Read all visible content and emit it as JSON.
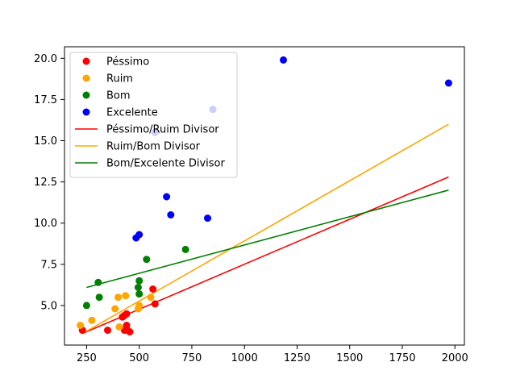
{
  "chart_data": {
    "type": "scatter",
    "title": "",
    "xlabel": "",
    "ylabel": "",
    "xlim": [
      145,
      2045
    ],
    "ylim": [
      2.6,
      20.7
    ],
    "xticks": [
      250,
      500,
      750,
      1000,
      1250,
      1500,
      1750,
      2000
    ],
    "yticks": [
      5.0,
      7.5,
      10.0,
      12.5,
      15.0,
      17.5,
      20.0
    ],
    "xtick_labels": [
      "250",
      "500",
      "750",
      "1000",
      "1250",
      "1500",
      "1750",
      "2000"
    ],
    "ytick_labels": [
      "5.0",
      "7.5",
      "10.0",
      "12.5",
      "15.0",
      "17.5",
      "20.0"
    ],
    "grid": false,
    "legend_position": "top-left",
    "series": [
      {
        "name": "Péssimo",
        "kind": "scatter",
        "color": "#ff0000",
        "points": [
          [
            230,
            3.5
          ],
          [
            350,
            3.5
          ],
          [
            420,
            4.3
          ],
          [
            430,
            4.4
          ],
          [
            440,
            4.5
          ],
          [
            440,
            3.8
          ],
          [
            430,
            3.5
          ],
          [
            445,
            3.5
          ],
          [
            455,
            3.4
          ],
          [
            565,
            6.0
          ],
          [
            575,
            5.1
          ]
        ]
      },
      {
        "name": "Ruim",
        "kind": "scatter",
        "color": "#ffa500",
        "points": [
          [
            220,
            3.8
          ],
          [
            275,
            4.1
          ],
          [
            385,
            4.8
          ],
          [
            400,
            5.5
          ],
          [
            405,
            3.7
          ],
          [
            435,
            5.6
          ],
          [
            495,
            4.8
          ],
          [
            500,
            5.0
          ],
          [
            555,
            5.5
          ]
        ]
      },
      {
        "name": "Bom",
        "kind": "scatter",
        "color": "#008000",
        "points": [
          [
            250,
            5.0
          ],
          [
            305,
            6.4
          ],
          [
            310,
            5.5
          ],
          [
            495,
            6.1
          ],
          [
            500,
            5.7
          ],
          [
            500,
            6.5
          ],
          [
            535,
            7.8
          ],
          [
            720,
            8.4
          ]
        ]
      },
      {
        "name": "Excelente",
        "kind": "scatter",
        "color": "#0000ff",
        "points": [
          [
            485,
            9.1
          ],
          [
            500,
            9.3
          ],
          [
            575,
            15.5
          ],
          [
            630,
            11.6
          ],
          [
            650,
            10.5
          ],
          [
            825,
            10.3
          ],
          [
            850,
            16.9
          ],
          [
            1185,
            19.9
          ],
          [
            1970,
            18.5
          ]
        ]
      },
      {
        "name": "Péssimo/Ruim Divisor",
        "kind": "line",
        "color": "#ff0000",
        "points": [
          [
            230,
            3.3
          ],
          [
            1970,
            12.8
          ]
        ]
      },
      {
        "name": "Ruim/Bom Divisor",
        "kind": "line",
        "color": "#ffa500",
        "points": [
          [
            230,
            3.3
          ],
          [
            1970,
            16.0
          ]
        ]
      },
      {
        "name": "Bom/Excelente Divisor",
        "kind": "line",
        "color": "#008000",
        "points": [
          [
            250,
            6.1
          ],
          [
            1970,
            12.0
          ]
        ]
      }
    ]
  }
}
